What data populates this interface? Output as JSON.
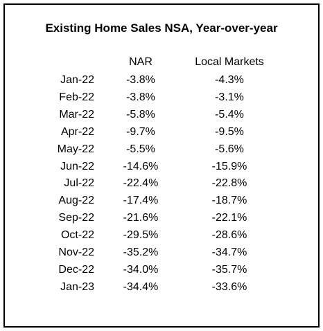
{
  "title": "Existing Home Sales NSA, Year-over-year",
  "table": {
    "columns": [
      "NAR",
      "Local Markets"
    ],
    "rows": [
      [
        "Jan-22",
        "-3.8%",
        "-4.3%"
      ],
      [
        "Feb-22",
        "-3.8%",
        "-3.1%"
      ],
      [
        "Mar-22",
        "-5.8%",
        "-5.4%"
      ],
      [
        "Apr-22",
        "-9.7%",
        "-9.5%"
      ],
      [
        "May-22",
        "-5.5%",
        "-5.6%"
      ],
      [
        "Jun-22",
        "-14.6%",
        "-15.9%"
      ],
      [
        "Jul-22",
        "-22.4%",
        "-22.8%"
      ],
      [
        "Aug-22",
        "-17.4%",
        "-18.7%"
      ],
      [
        "Sep-22",
        "-21.6%",
        "-22.1%"
      ],
      [
        "Oct-22",
        "-29.5%",
        "-28.6%"
      ],
      [
        "Nov-22",
        "-35.2%",
        "-34.7%"
      ],
      [
        "Dec-22",
        "-34.0%",
        "-35.7%"
      ],
      [
        "Jan-23",
        "-34.4%",
        "-33.6%"
      ]
    ]
  }
}
